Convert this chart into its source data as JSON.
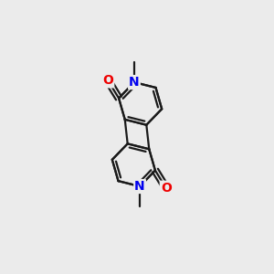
{
  "bg_color": "#ebebeb",
  "bond_color": "#1a1a1a",
  "N_color": "#0000ee",
  "O_color": "#ee0000",
  "bond_width": 1.6,
  "font_size_atom": 10,
  "fig_size": [
    3.0,
    3.0
  ],
  "dpi": 100,
  "xlim": [
    0,
    10
  ],
  "ylim": [
    0,
    10
  ]
}
